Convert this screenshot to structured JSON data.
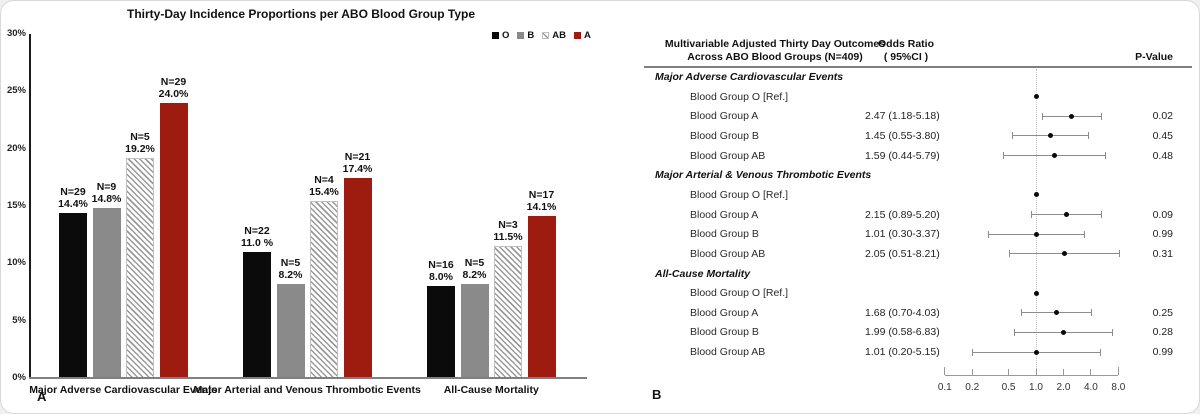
{
  "panels": {
    "a": "A",
    "b": "B"
  },
  "chart_data": [
    {
      "type": "bar",
      "title": "Thirty-Day Incidence Proportions per ABO Blood Group Type",
      "xlabel": "",
      "ylabel": "",
      "ylim": [
        0,
        30
      ],
      "y_tick_labels": [
        "30%",
        "25%",
        "20%",
        "15%",
        "10%",
        "5%",
        "0%"
      ],
      "grid": false,
      "legend_position": "top-right",
      "legend": [
        {
          "label": "O",
          "style": "black"
        },
        {
          "label": "B",
          "style": "gray"
        },
        {
          "label": "AB",
          "style": "hatch"
        },
        {
          "label": "A",
          "style": "red"
        }
      ],
      "colors": {
        "black": "#0b0b0b",
        "gray": "#8a8a8a",
        "red": "#9e1b10",
        "hatch_fg": "#9a9a9a"
      },
      "categories": [
        "Major Adverse Cardiovascular Events",
        "Major Arterial and Venous Thrombotic Events",
        "All-Cause Mortality"
      ],
      "groups": [
        {
          "category": "Major Adverse Cardiovascular Events",
          "bars": [
            {
              "series": "O",
              "style": "black",
              "n_label": "N=29",
              "pct_label": "14.4%",
              "value": 14.4
            },
            {
              "series": "B",
              "style": "gray",
              "n_label": "N=9",
              "pct_label": "14.8%",
              "value": 14.8
            },
            {
              "series": "AB",
              "style": "hatch",
              "n_label": "N=5",
              "pct_label": "19.2%",
              "value": 19.2
            },
            {
              "series": "A",
              "style": "red",
              "n_label": "N=29",
              "pct_label": "24.0%",
              "value": 24.0
            }
          ]
        },
        {
          "category": "Major Arterial and Venous Thrombotic Events",
          "bars": [
            {
              "series": "O",
              "style": "black",
              "n_label": "N=22",
              "pct_label": "11.0 %",
              "value": 11.0
            },
            {
              "series": "B",
              "style": "gray",
              "n_label": "N=5",
              "pct_label": "8.2%",
              "value": 8.2
            },
            {
              "series": "AB",
              "style": "hatch",
              "n_label": "N=4",
              "pct_label": "15.4%",
              "value": 15.4
            },
            {
              "series": "A",
              "style": "red",
              "n_label": "N=21",
              "pct_label": "17.4%",
              "value": 17.4
            }
          ]
        },
        {
          "category": "All-Cause Mortality",
          "bars": [
            {
              "series": "O",
              "style": "black",
              "n_label": "N=16",
              "pct_label": "8.0%",
              "value": 8.0
            },
            {
              "series": "B",
              "style": "gray",
              "n_label": "N=5",
              "pct_label": "8.2%",
              "value": 8.2
            },
            {
              "series": "AB",
              "style": "hatch",
              "n_label": "N=3",
              "pct_label": "11.5%",
              "value": 11.5
            },
            {
              "series": "A",
              "style": "red",
              "n_label": "N=17",
              "pct_label": "14.1%",
              "value": 14.1
            }
          ]
        }
      ]
    },
    {
      "type": "forest",
      "header": {
        "outcomes_line1": "Multivariable Adjusted Thirty Day Outcomes",
        "outcomes_line2": "Across ABO Blood Groups (N=409)",
        "or_line1": "Odds Ratio",
        "or_line2": "( 95%CI )",
        "pvalue": "P-Value"
      },
      "xscale": "log",
      "reference_value": 1.0,
      "x_tick_labels": [
        "0.1",
        "0.2",
        "0.5",
        "1.0",
        "2.0",
        "4.0",
        "8.0"
      ],
      "sections": [
        {
          "label": "Major Adverse Cardiovascular Events",
          "rows": [
            {
              "label": "Blood Group O [Ref.]",
              "ref": true,
              "or": 1.0
            },
            {
              "label": "Blood Group A",
              "or_text": "2.47 (1.18-5.18)",
              "or": 2.47,
              "lo": 1.18,
              "hi": 5.18,
              "p": "0.02"
            },
            {
              "label": "Blood Group B",
              "or_text": "1.45 (0.55-3.80)",
              "or": 1.45,
              "lo": 0.55,
              "hi": 3.8,
              "p": "0.45"
            },
            {
              "label": "Blood Group AB",
              "or_text": "1.59 (0.44-5.79)",
              "or": 1.59,
              "lo": 0.44,
              "hi": 5.79,
              "p": "0.48"
            }
          ]
        },
        {
          "label": "Major Arterial & Venous Thrombotic Events",
          "rows": [
            {
              "label": "Blood Group O [Ref.]",
              "ref": true,
              "or": 1.0
            },
            {
              "label": "Blood Group A",
              "or_text": "2.15 (0.89-5.20)",
              "or": 2.15,
              "lo": 0.89,
              "hi": 5.2,
              "p": "0.09"
            },
            {
              "label": "Blood Group B",
              "or_text": "1.01 (0.30-3.37)",
              "or": 1.01,
              "lo": 0.3,
              "hi": 3.37,
              "p": "0.99"
            },
            {
              "label": "Blood Group AB",
              "or_text": "2.05 (0.51-8.21)",
              "or": 2.05,
              "lo": 0.51,
              "hi": 8.21,
              "p": "0.31"
            }
          ]
        },
        {
          "label": "All-Cause Mortality",
          "rows": [
            {
              "label": "Blood Group O [Ref.]",
              "ref": true,
              "or": 1.0
            },
            {
              "label": "Blood Group A",
              "or_text": "1.68 (0.70-4.03)",
              "or": 1.68,
              "lo": 0.7,
              "hi": 4.03,
              "p": "0.25"
            },
            {
              "label": "Blood Group B",
              "or_text": "1.99 (0.58-6.83)",
              "or": 1.99,
              "lo": 0.58,
              "hi": 6.83,
              "p": "0.28"
            },
            {
              "label": "Blood Group AB",
              "or_text": "1.01 (0.20-5.15)",
              "or": 1.01,
              "lo": 0.2,
              "hi": 5.15,
              "p": "0.99"
            }
          ]
        }
      ]
    }
  ]
}
